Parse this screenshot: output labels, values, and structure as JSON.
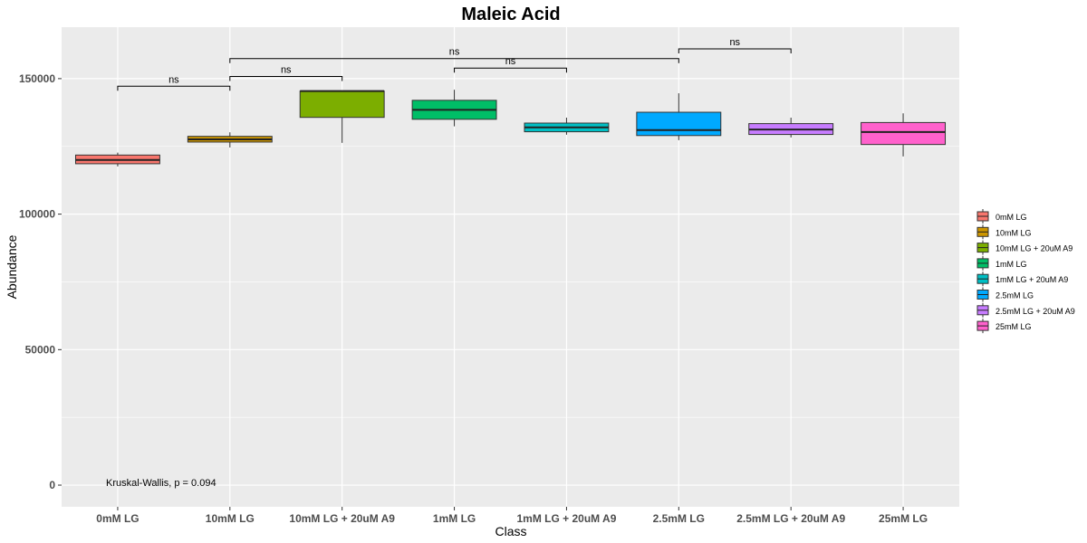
{
  "chart_data": {
    "type": "box",
    "title": "Maleic Acid",
    "xlabel": "Class",
    "ylabel": "Abundance",
    "ylim": [
      -8000,
      169000
    ],
    "y_ticks": [
      0,
      50000,
      100000,
      150000
    ],
    "y_tick_labels": [
      "0",
      "50000",
      "100000",
      "150000"
    ],
    "grid": true,
    "legend_position": "right",
    "categories": [
      "0mM LG",
      "10mM LG",
      "10mM LG + 20uM A9",
      "1mM LG",
      "1mM LG + 20uM A9",
      "2.5mM LG",
      "2.5mM LG + 20uM A9",
      "25mM LG"
    ],
    "boxes": [
      {
        "category": "0mM LG",
        "whisker_low": 117600,
        "q1": 118600,
        "median": 120000,
        "q3": 121800,
        "whisker_high": 122700,
        "color": "#F8766D"
      },
      {
        "category": "10mM LG",
        "whisker_low": 124600,
        "q1": 126600,
        "median": 127600,
        "q3": 128700,
        "whisker_high": 130200,
        "color": "#CD9600"
      },
      {
        "category": "10mM LG + 20uM A9",
        "whisker_low": 126300,
        "q1": 135700,
        "median": 145400,
        "q3": 145400,
        "whisker_high": 145400,
        "color": "#7CAE00"
      },
      {
        "category": "1mM LG",
        "whisker_low": 132400,
        "q1": 135000,
        "median": 138500,
        "q3": 142000,
        "whisker_high": 145900,
        "color": "#00BE67"
      },
      {
        "category": "1mM LG + 20uM A9",
        "whisker_low": 129300,
        "q1": 130400,
        "median": 132000,
        "q3": 133600,
        "whisker_high": 135600,
        "color": "#00BFC4"
      },
      {
        "category": "2.5mM LG",
        "whisker_low": 127300,
        "q1": 129000,
        "median": 131000,
        "q3": 137600,
        "whisker_high": 144600,
        "color": "#00A9FF"
      },
      {
        "category": "2.5mM LG + 20uM A9",
        "whisker_low": 128300,
        "q1": 129400,
        "median": 131200,
        "q3": 133400,
        "whisker_high": 135600,
        "color": "#C77CFF"
      },
      {
        "category": "25mM LG",
        "whisker_low": 121300,
        "q1": 125700,
        "median": 130300,
        "q3": 133800,
        "whisker_high": 137200,
        "color": "#FF61CC"
      }
    ],
    "comparisons": [
      {
        "from": "0mM LG",
        "to": "10mM LG",
        "y": 147200,
        "label": "ns"
      },
      {
        "from": "10mM LG",
        "to": "10mM LG + 20uM A9",
        "y": 150800,
        "label": "ns"
      },
      {
        "from": "10mM LG",
        "to": "2.5mM LG",
        "y": 157400,
        "label": "ns"
      },
      {
        "from": "1mM LG",
        "to": "1mM LG + 20uM A9",
        "y": 153900,
        "label": "ns"
      },
      {
        "from": "2.5mM LG",
        "to": "2.5mM LG + 20uM A9",
        "y": 161000,
        "label": "ns"
      }
    ],
    "annotation": "Kruskal-Wallis, p = 0.094",
    "annotation_position": {
      "category": "0mM LG",
      "y": 1000
    },
    "legend": [
      {
        "label": "0mM LG",
        "color": "#F8766D"
      },
      {
        "label": "10mM LG",
        "color": "#CD9600"
      },
      {
        "label": "10mM LG + 20uM A9",
        "color": "#7CAE00"
      },
      {
        "label": "1mM LG",
        "color": "#00BE67"
      },
      {
        "label": "1mM LG + 20uM A9",
        "color": "#00BFC4"
      },
      {
        "label": "2.5mM LG",
        "color": "#00A9FF"
      },
      {
        "label": "2.5mM LG + 20uM A9",
        "color": "#C77CFF"
      },
      {
        "label": "25mM LG",
        "color": "#FF61CC"
      }
    ],
    "colors": {
      "panel_background": "#EBEBEB",
      "grid": "#FFFFFF",
      "tick_text": "#4D4D4D"
    }
  }
}
